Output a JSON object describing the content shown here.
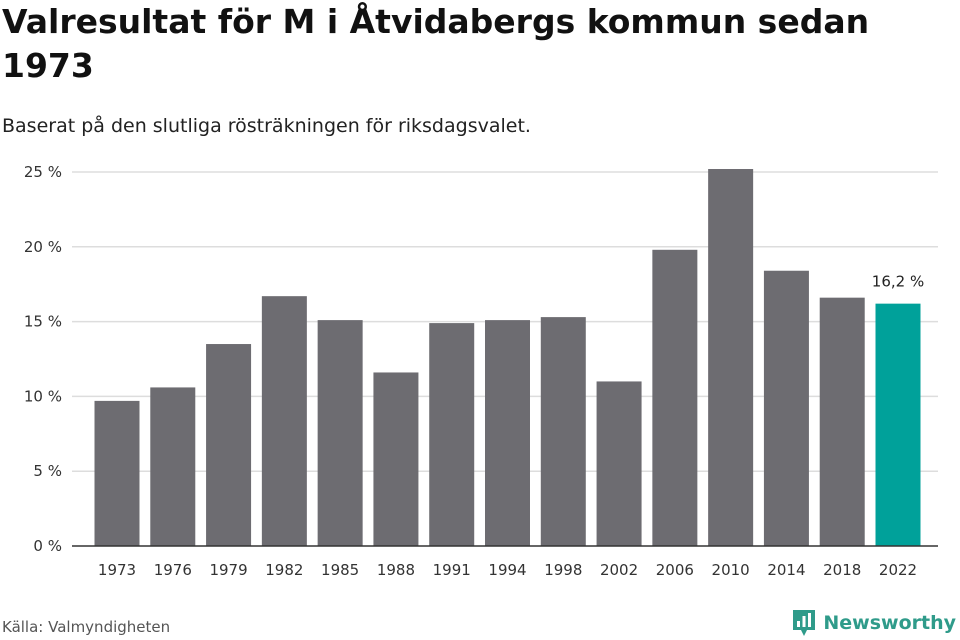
{
  "title": "Valresultat för M i Åtvidabergs kommun sedan 1973",
  "subtitle": "Baserat på den slutliga rösträkningen för riksdagsvalet.",
  "source": "Källa: Valmyndigheten",
  "brand": {
    "name": "Newsworthy",
    "icon": "newsworthy-logo-icon",
    "color": "#2f9b8a"
  },
  "colors": {
    "bar": "#6d6c71",
    "highlight": "#00a19a",
    "grid": "#dddddd",
    "axis": "#333333"
  },
  "chart_data": {
    "type": "bar",
    "title": "Valresultat för M i Åtvidabergs kommun sedan 1973",
    "subtitle": "Baserat på den slutliga rösträkningen för riksdagsvalet.",
    "categories": [
      "1973",
      "1976",
      "1979",
      "1982",
      "1985",
      "1988",
      "1991",
      "1994",
      "1998",
      "2002",
      "2006",
      "2010",
      "2014",
      "2018",
      "2022"
    ],
    "values": [
      9.7,
      10.6,
      13.5,
      16.7,
      15.1,
      11.6,
      14.9,
      15.1,
      15.3,
      11.0,
      19.8,
      25.2,
      18.4,
      16.6,
      16.2
    ],
    "highlight_index": 14,
    "data_labels": {
      "14": "16,2 %"
    },
    "ylim": [
      0,
      25
    ],
    "yticks": [
      {
        "value": 0,
        "label": "0 %"
      },
      {
        "value": 5,
        "label": "5 %"
      },
      {
        "value": 10,
        "label": "10 %"
      },
      {
        "value": 15,
        "label": "15 %"
      },
      {
        "value": 20,
        "label": "20 %"
      },
      {
        "value": 25,
        "label": "25 %"
      }
    ],
    "grid": true,
    "xlabel": "",
    "ylabel": ""
  }
}
